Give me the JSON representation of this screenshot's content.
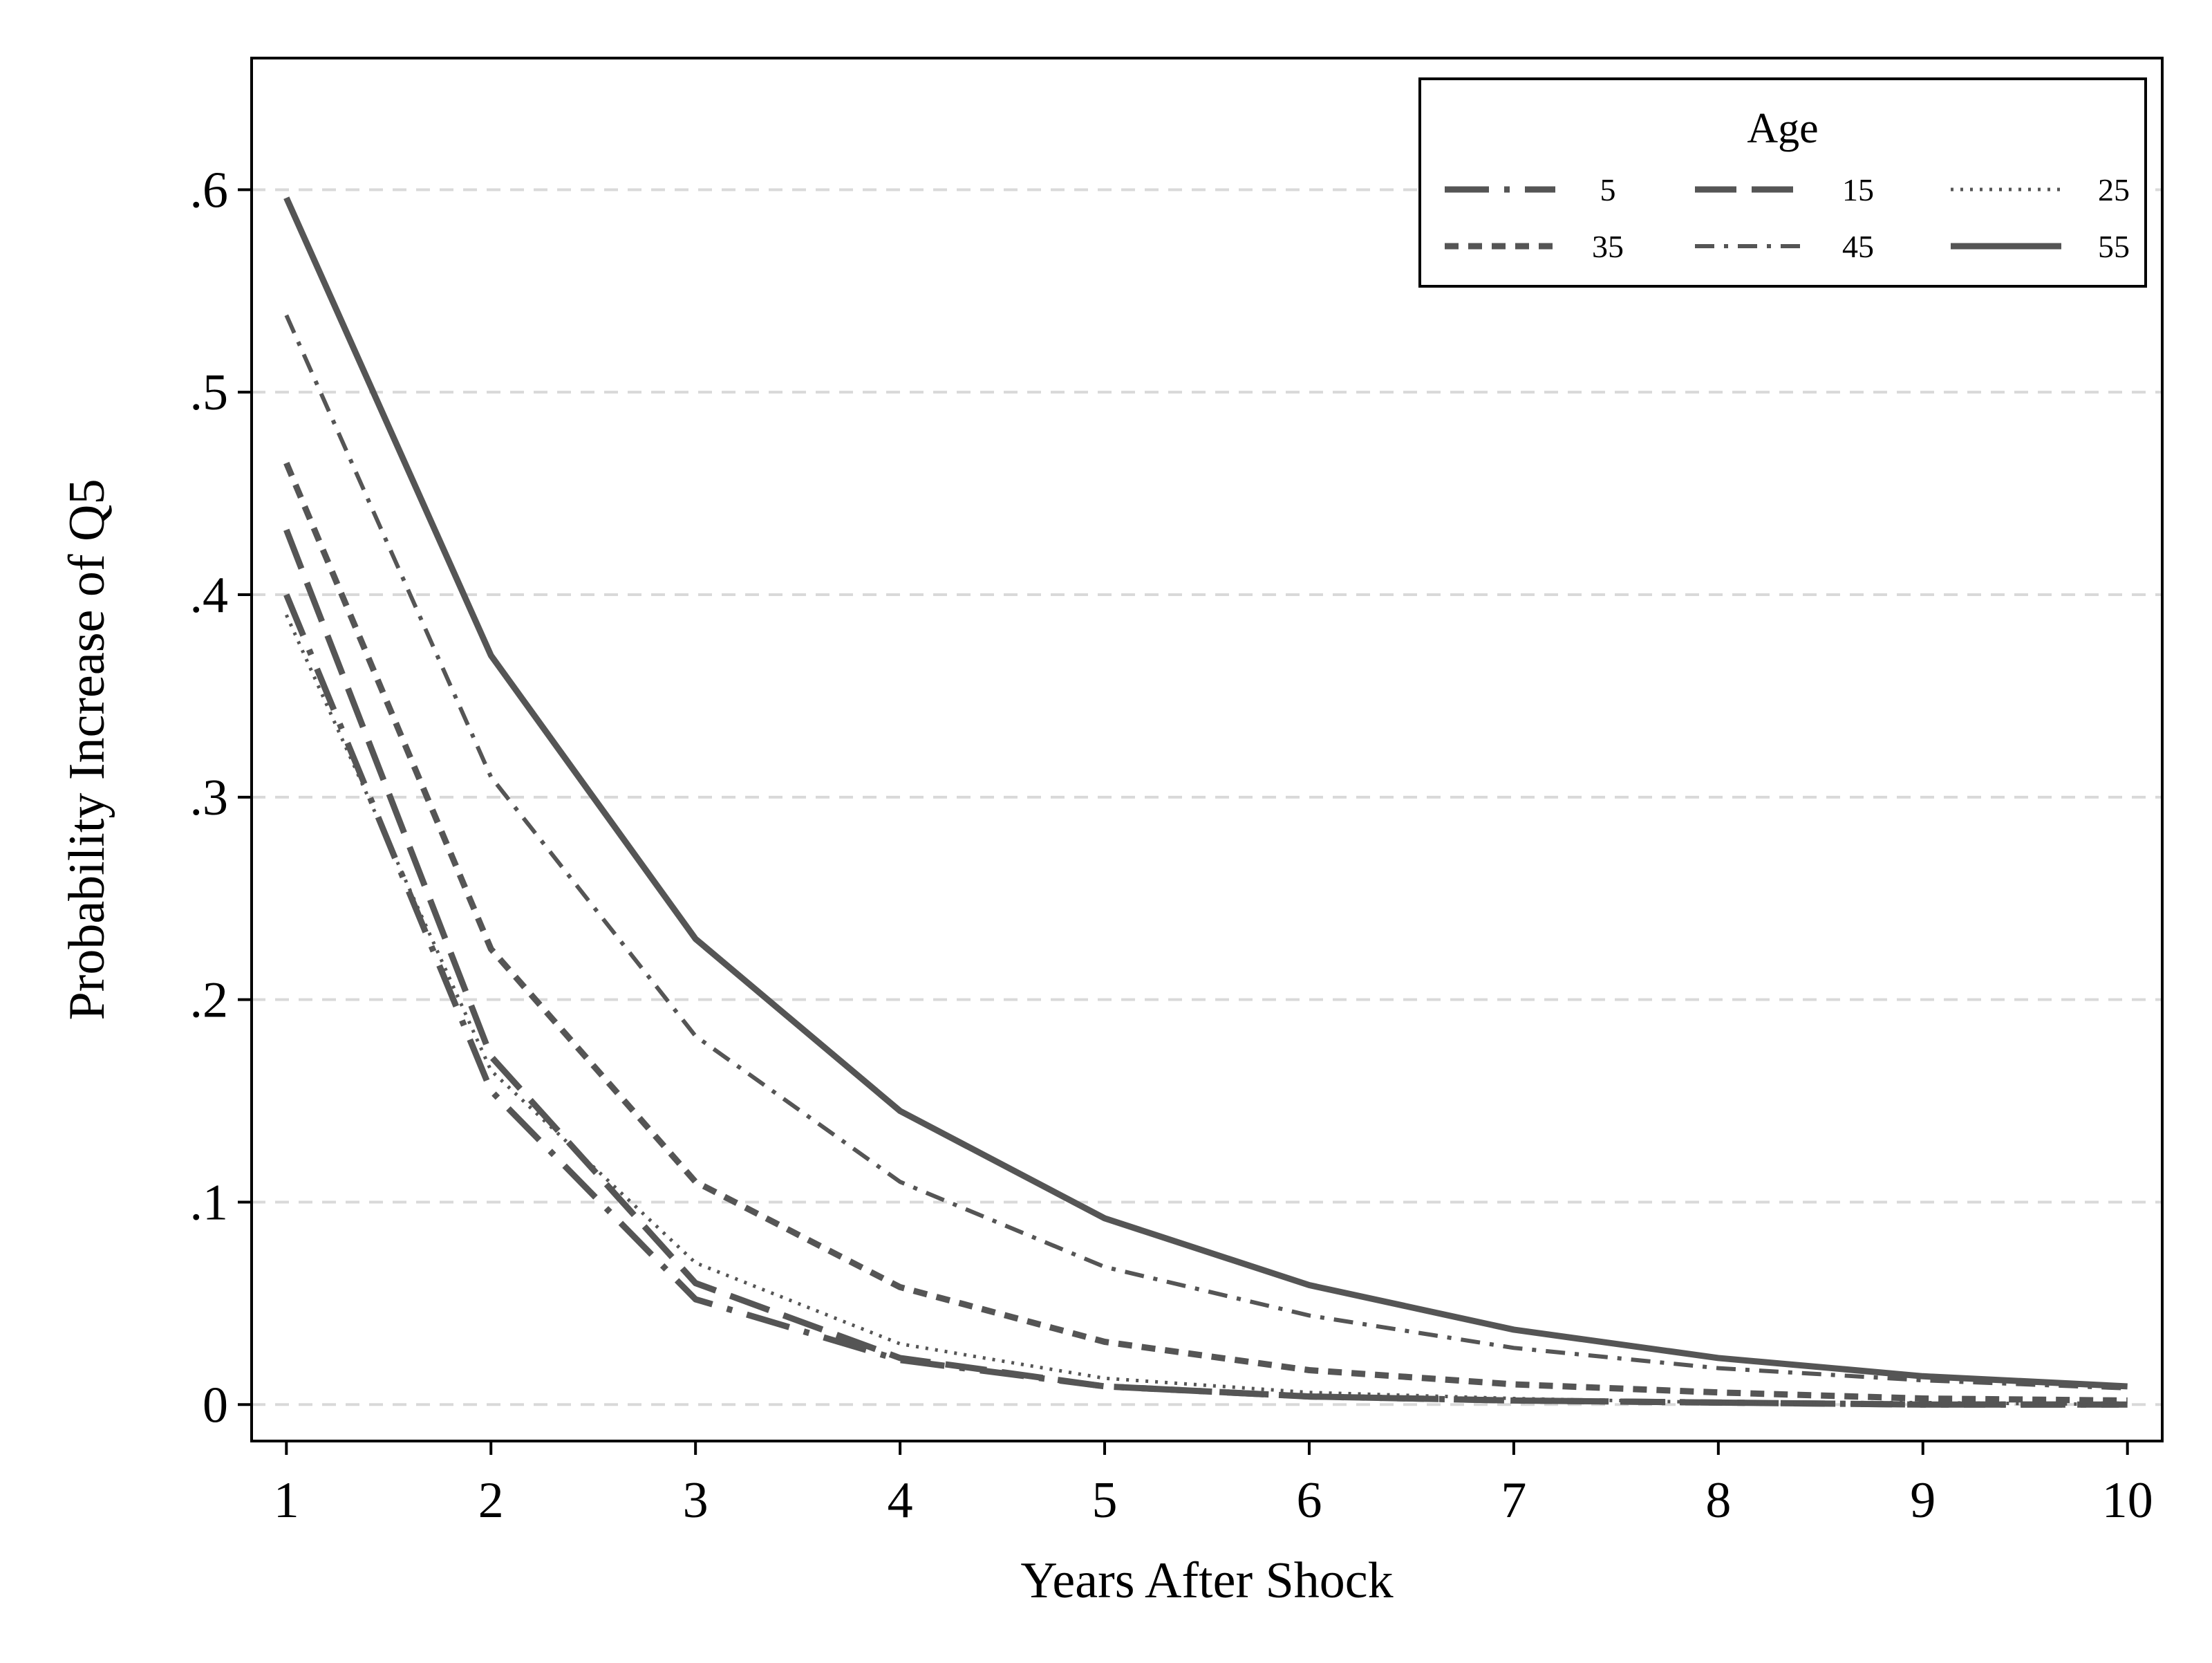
{
  "chart_data": {
    "type": "line",
    "xlabel": "Years After Shock",
    "ylabel": "Probability Increase of Q5",
    "xlim": [
      0.83,
      10.17
    ],
    "ylim": [
      -0.018,
      0.665
    ],
    "x": [
      1,
      2,
      3,
      4,
      5,
      6,
      7,
      8,
      9,
      10
    ],
    "x_ticks": [
      1,
      2,
      3,
      4,
      5,
      6,
      7,
      8,
      9,
      10
    ],
    "x_tick_labels": [
      "1",
      "2",
      "3",
      "4",
      "5",
      "6",
      "7",
      "8",
      "9",
      "10"
    ],
    "y_ticks": [
      0,
      0.1,
      0.2,
      0.3,
      0.4,
      0.5,
      0.6
    ],
    "y_tick_labels": [
      "0",
      ".1",
      ".2",
      ".3",
      ".4",
      ".5",
      ".6"
    ],
    "grid": true,
    "legend": {
      "title": "Age",
      "position": "top-right",
      "columns": 3
    },
    "series": [
      {
        "name": "5",
        "style": "dash-dot",
        "values": [
          0.4,
          0.155,
          0.052,
          0.022,
          0.009,
          0.004,
          0.002,
          0.001,
          0.0,
          0.0
        ]
      },
      {
        "name": "15",
        "style": "long-dash",
        "values": [
          0.432,
          0.172,
          0.06,
          0.023,
          0.009,
          0.004,
          0.002,
          0.001,
          0.0,
          0.0
        ]
      },
      {
        "name": "25",
        "style": "dotted",
        "values": [
          0.39,
          0.165,
          0.07,
          0.03,
          0.013,
          0.006,
          0.003,
          0.001,
          0.001,
          0.0
        ]
      },
      {
        "name": "35",
        "style": "short-dash",
        "values": [
          0.465,
          0.225,
          0.11,
          0.058,
          0.031,
          0.017,
          0.01,
          0.006,
          0.003,
          0.002
        ]
      },
      {
        "name": "45",
        "style": "dash-dot-fine",
        "values": [
          0.538,
          0.31,
          0.182,
          0.11,
          0.068,
          0.044,
          0.028,
          0.018,
          0.012,
          0.008
        ]
      },
      {
        "name": "55",
        "style": "solid",
        "values": [
          0.596,
          0.37,
          0.23,
          0.145,
          0.092,
          0.059,
          0.037,
          0.023,
          0.014,
          0.009
        ]
      }
    ],
    "line_color": "#555555",
    "grid_color": "#d9d9d9"
  }
}
